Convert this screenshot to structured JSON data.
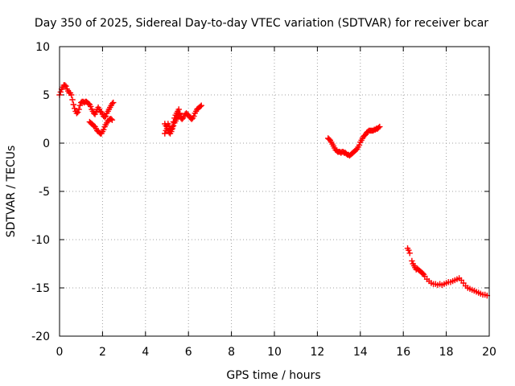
{
  "chart_data": {
    "type": "scatter",
    "title": "Day 350 of 2025, Sidereal Day-to-day VTEC variation (SDTVAR) for receiver bcar",
    "xlabel": "GPS time / hours",
    "ylabel": "SDTVAR / TECUs",
    "xlim": [
      0,
      20
    ],
    "ylim": [
      -20,
      10
    ],
    "xticks": [
      "0",
      "2",
      "4",
      "6",
      "8",
      "10",
      "12",
      "14",
      "16",
      "18",
      "20"
    ],
    "yticks": [
      "10",
      "5",
      "0",
      "-5",
      "-10",
      "-15",
      "-20"
    ],
    "grid": true,
    "legend": "none",
    "marker": "plus",
    "color": "#ff0000",
    "series": [
      {
        "x": [
          0.0,
          0.05,
          0.1,
          0.15,
          0.2,
          0.25,
          0.3,
          0.35,
          0.4,
          0.45,
          0.5,
          0.55,
          0.6,
          0.65,
          0.7,
          0.75,
          0.8,
          0.85,
          0.9,
          0.95,
          1.0,
          1.05,
          1.1,
          1.15,
          1.2,
          1.25,
          1.3,
          1.35,
          1.4,
          1.45,
          1.5,
          1.55,
          1.6,
          1.65,
          1.7,
          1.75,
          1.8,
          1.85,
          1.9,
          1.95,
          2.0,
          2.05,
          2.1,
          2.15,
          2.2,
          2.25,
          2.3,
          2.35,
          2.4,
          2.45,
          2.5,
          1.4,
          1.45,
          1.5,
          1.55,
          1.6,
          1.65,
          1.7,
          1.75,
          1.8,
          1.85,
          1.9,
          1.95,
          2.0,
          2.05,
          2.1,
          2.15,
          2.2,
          2.25,
          2.3,
          2.35,
          2.4,
          2.45
        ],
        "y": [
          5.0,
          5.3,
          5.6,
          5.8,
          6.0,
          6.0,
          5.9,
          5.6,
          5.4,
          5.2,
          5.2,
          5.0,
          4.5,
          4.0,
          3.6,
          3.3,
          3.1,
          3.2,
          3.5,
          3.9,
          4.2,
          4.3,
          4.3,
          4.2,
          4.3,
          4.3,
          4.2,
          4.1,
          4.0,
          3.8,
          3.5,
          3.3,
          3.1,
          3.0,
          3.2,
          3.5,
          3.7,
          3.5,
          3.3,
          3.2,
          3.0,
          2.8,
          2.7,
          2.8,
          3.1,
          3.3,
          3.5,
          3.7,
          3.9,
          4.1,
          4.2,
          2.2,
          2.1,
          2.0,
          1.9,
          1.8,
          1.7,
          1.5,
          1.3,
          1.2,
          1.1,
          1.0,
          1.0,
          1.2,
          1.4,
          1.7,
          1.9,
          2.1,
          2.3,
          2.4,
          2.5,
          2.5,
          2.4
        ]
      },
      {
        "x": [
          4.9,
          4.95,
          5.0,
          5.05,
          5.1,
          5.15,
          5.2,
          5.25,
          5.3,
          5.35,
          5.4,
          5.45,
          5.5,
          5.55,
          5.6,
          5.65,
          5.7,
          5.75,
          5.8,
          5.85,
          5.9,
          5.95,
          6.0,
          6.05,
          6.1,
          6.15,
          6.2,
          6.25,
          6.3,
          6.35,
          6.4,
          6.45,
          6.5,
          6.55,
          6.6,
          4.9,
          4.95,
          5.0,
          5.05,
          5.1,
          5.15,
          5.2,
          5.25,
          5.3,
          5.35,
          5.4,
          5.45,
          5.5,
          5.55,
          5.6
        ],
        "y": [
          1.0,
          1.3,
          1.7,
          2.0,
          1.8,
          1.5,
          1.4,
          1.7,
          2.2,
          2.6,
          2.9,
          3.1,
          3.3,
          3.5,
          3.0,
          2.6,
          2.5,
          2.6,
          2.8,
          3.0,
          3.1,
          3.0,
          2.9,
          2.7,
          2.6,
          2.5,
          2.6,
          2.8,
          3.1,
          3.3,
          3.5,
          3.6,
          3.7,
          3.8,
          3.9,
          2.0,
          1.8,
          1.5,
          1.3,
          1.1,
          1.0,
          1.2,
          1.5,
          1.8,
          2.1,
          2.3,
          2.5,
          2.7,
          2.9,
          3.1
        ]
      },
      {
        "x": [
          12.5,
          12.55,
          12.6,
          12.65,
          12.7,
          12.75,
          12.8,
          12.85,
          12.9,
          12.95,
          13.0,
          13.05,
          13.1,
          13.15,
          13.2,
          13.25,
          13.3,
          13.35,
          13.4,
          13.45,
          13.5,
          13.55,
          13.6,
          13.65,
          13.7,
          13.75,
          13.8,
          13.85,
          13.9,
          13.95,
          14.0,
          14.05,
          14.1,
          14.15,
          14.2,
          14.25,
          14.3,
          14.35,
          14.4,
          14.45,
          14.5,
          14.55,
          14.6,
          14.65,
          14.7,
          14.75,
          14.8,
          14.85,
          14.9
        ],
        "y": [
          0.5,
          0.4,
          0.3,
          0.1,
          -0.1,
          -0.3,
          -0.5,
          -0.7,
          -0.8,
          -0.9,
          -0.9,
          -0.9,
          -1.0,
          -0.9,
          -0.9,
          -1.0,
          -1.0,
          -1.1,
          -1.2,
          -1.2,
          -1.3,
          -1.2,
          -1.1,
          -1.0,
          -0.9,
          -0.8,
          -0.7,
          -0.6,
          -0.4,
          -0.2,
          0.1,
          0.3,
          0.5,
          0.7,
          0.8,
          0.9,
          1.1,
          1.2,
          1.3,
          1.3,
          1.3,
          1.3,
          1.3,
          1.4,
          1.4,
          1.5,
          1.5,
          1.6,
          1.7
        ]
      },
      {
        "x": [
          16.2,
          16.25,
          16.3,
          16.4,
          16.45,
          16.5,
          16.55,
          16.6,
          16.65,
          16.7,
          16.75,
          16.8,
          16.85,
          16.9,
          16.95,
          17.0,
          17.1,
          17.2,
          17.3,
          17.4,
          17.5,
          17.6,
          17.7,
          17.8,
          17.9,
          18.0,
          18.1,
          18.2,
          18.3,
          18.4,
          18.5,
          18.6,
          18.7,
          18.8,
          18.9,
          19.0,
          19.1,
          19.2,
          19.3,
          19.4,
          19.5,
          19.6,
          19.7,
          19.8,
          19.9
        ],
        "y": [
          -10.9,
          -11.1,
          -11.4,
          -12.2,
          -12.5,
          -12.7,
          -12.9,
          -13.1,
          -13.0,
          -13.1,
          -13.2,
          -13.3,
          -13.4,
          -13.5,
          -13.6,
          -13.8,
          -14.1,
          -14.3,
          -14.5,
          -14.6,
          -14.6,
          -14.7,
          -14.6,
          -14.7,
          -14.6,
          -14.5,
          -14.4,
          -14.4,
          -14.3,
          -14.2,
          -14.1,
          -14.0,
          -14.2,
          -14.5,
          -14.8,
          -15.0,
          -15.1,
          -15.2,
          -15.3,
          -15.4,
          -15.5,
          -15.6,
          -15.7,
          -15.7,
          -15.8
        ]
      }
    ]
  }
}
